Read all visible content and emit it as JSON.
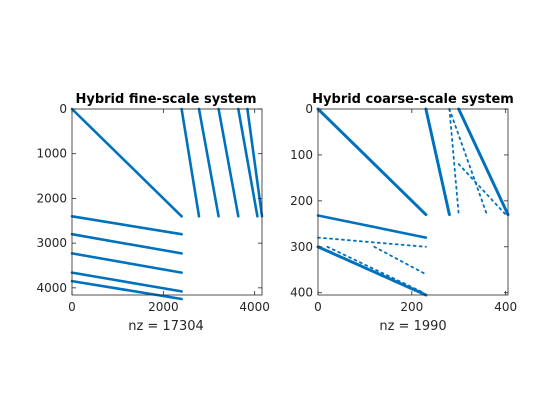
{
  "chart_data": [
    {
      "type": "scatter",
      "subtype": "sparsity-pattern",
      "title": "Hybrid fine-scale system",
      "xlabel": "nz = 17304",
      "nz": 17304,
      "xlim": [
        0,
        4160
      ],
      "ylim": [
        0,
        4160
      ],
      "y_reversed": true,
      "grid": false,
      "xticks": [
        0,
        2000,
        4000
      ],
      "yticks": [
        0,
        1000,
        2000,
        3000,
        4000
      ],
      "marker_color": "#0072BD",
      "bands": [
        {
          "x": [
            0,
            2400
          ],
          "y": [
            0,
            2400
          ],
          "style": "solid"
        },
        {
          "x": [
            2400,
            2400
          ],
          "y": [
            2400,
            2400
          ],
          "style": "solid"
        },
        {
          "x": [
            2400,
            2400
          ],
          "y": [
            2400,
            2400
          ],
          "style": "solid"
        },
        {
          "x": [
            2400,
            2400
          ],
          "y": [
            2400,
            2400
          ],
          "style": "solid"
        },
        {
          "x": [
            0,
            2400
          ],
          "y": [
            2400,
            2800
          ],
          "style": "solid"
        },
        {
          "x": [
            0,
            2400
          ],
          "y": [
            2800,
            3230
          ],
          "style": "solid"
        },
        {
          "x": [
            0,
            2400
          ],
          "y": [
            3230,
            3660
          ],
          "style": "solid"
        },
        {
          "x": [
            0,
            2400
          ],
          "y": [
            3660,
            4080
          ],
          "style": "solid"
        },
        {
          "x": [
            0,
            2400
          ],
          "y": [
            3850,
            4250
          ],
          "style": "solid"
        },
        {
          "x": [
            2400,
            2780
          ],
          "y": [
            0,
            2400
          ],
          "style": "solid"
        },
        {
          "x": [
            2780,
            3210
          ],
          "y": [
            0,
            2400
          ],
          "style": "solid"
        },
        {
          "x": [
            3210,
            3640
          ],
          "y": [
            0,
            2400
          ],
          "style": "solid"
        },
        {
          "x": [
            3640,
            4060
          ],
          "y": [
            0,
            2400
          ],
          "style": "solid"
        },
        {
          "x": [
            3840,
            4160
          ],
          "y": [
            0,
            2400
          ],
          "style": "solid"
        }
      ]
    },
    {
      "type": "scatter",
      "subtype": "sparsity-pattern",
      "title": "Hybrid coarse-scale system",
      "xlabel": "nz = 1990",
      "nz": 1990,
      "xlim": [
        0,
        405
      ],
      "ylim": [
        0,
        405
      ],
      "y_reversed": true,
      "grid": false,
      "xticks": [
        0,
        200,
        400
      ],
      "yticks": [
        0,
        100,
        200,
        300,
        400
      ],
      "marker_color": "#0072BD",
      "bands": [
        {
          "x": [
            0,
            230
          ],
          "y": [
            0,
            230
          ],
          "style": "dense"
        },
        {
          "x": [
            0,
            230
          ],
          "y": [
            232,
            280
          ],
          "style": "solid"
        },
        {
          "x": [
            0,
            230
          ],
          "y": [
            300,
            405
          ],
          "style": "dense"
        },
        {
          "x": [
            0,
            230
          ],
          "y": [
            280,
            300
          ],
          "style": "dotted"
        },
        {
          "x": [
            20,
            225
          ],
          "y": [
            300,
            400
          ],
          "style": "dotted"
        },
        {
          "x": [
            120,
            230
          ],
          "y": [
            300,
            360
          ],
          "style": "dotted"
        },
        {
          "x": [
            230,
            280
          ],
          "y": [
            0,
            230
          ],
          "style": "dense"
        },
        {
          "x": [
            280,
            300
          ],
          "y": [
            0,
            230
          ],
          "style": "dotted"
        },
        {
          "x": [
            300,
            405
          ],
          "y": [
            0,
            230
          ],
          "style": "dense"
        },
        {
          "x": [
            280,
            360
          ],
          "y": [
            0,
            230
          ],
          "style": "dotted"
        },
        {
          "x": [
            300,
            400
          ],
          "y": [
            120,
            230
          ],
          "style": "dotted"
        }
      ]
    }
  ]
}
